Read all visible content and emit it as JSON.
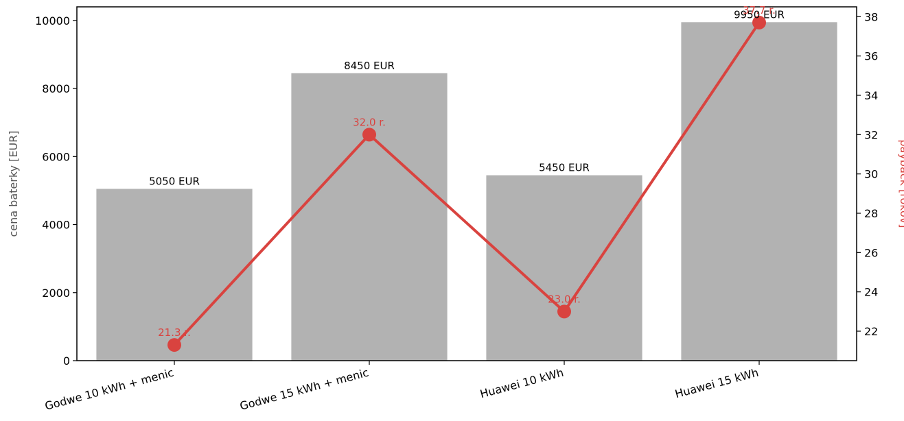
{
  "chart_data": {
    "type": "bar",
    "title": "",
    "categories": [
      "Godwe 10 kWh + menic",
      "Godwe 15 kWh + menic",
      "Huawei 10 kWh",
      "Huawei 15 kWh"
    ],
    "ylabel": "cena baterky [EUR]",
    "y2label": "payback [rokov]",
    "ylim": [
      0,
      10400
    ],
    "y2lim": [
      20.5,
      38.5
    ],
    "yticks": [
      0,
      2000,
      4000,
      6000,
      8000,
      10000
    ],
    "y2ticks": [
      22,
      24,
      26,
      28,
      30,
      32,
      34,
      36,
      38
    ],
    "grid": false,
    "series": [
      {
        "type": "bar",
        "axis": "left",
        "values": [
          5050,
          8450,
          5450,
          9950
        ],
        "labels": [
          "5050 EUR",
          "8450 EUR",
          "5450 EUR",
          "9950 EUR"
        ],
        "color": "#b2b2b2"
      },
      {
        "type": "line",
        "axis": "right",
        "values": [
          21.3,
          32.0,
          23.0,
          37.7
        ],
        "labels": [
          "21.3 r.",
          "32.0 r.",
          "23.0 r.",
          "37.7 r."
        ],
        "color": "#d9433f"
      }
    ],
    "colors": {
      "axis_text": "#000000",
      "y_title": "#555555",
      "y2_title": "#d9433f"
    }
  }
}
